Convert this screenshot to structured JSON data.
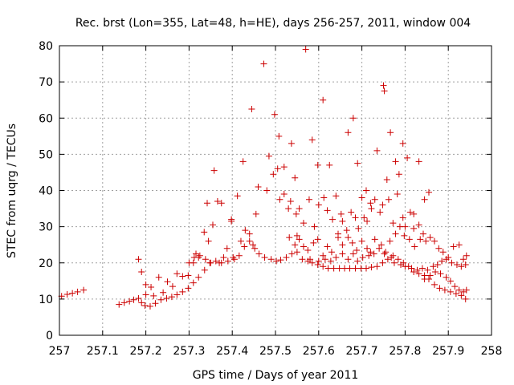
{
  "chart_data": {
    "type": "scatter",
    "title": "Rec. brst (Lon=355, Lat=48, h=HE), days 256-257, 2011, window 004",
    "xlabel": "GPS time / Days of year 2011",
    "ylabel": "STEC from uqrg / TECUs",
    "xlim": [
      257,
      258
    ],
    "ylim": [
      0,
      80
    ],
    "xticks": [
      "257",
      "257.1",
      "257.2",
      "257.3",
      "257.4",
      "257.5",
      "257.6",
      "257.7",
      "257.8",
      "257.9",
      "258"
    ],
    "yticks": [
      "0",
      "10",
      "20",
      "30",
      "40",
      "50",
      "60",
      "70",
      "80"
    ],
    "grid": true,
    "marker": "+",
    "color": "#cc0000",
    "points": [
      [
        257.005,
        10.8
      ],
      [
        257.018,
        11.3
      ],
      [
        257.03,
        11.6
      ],
      [
        257.042,
        12.0
      ],
      [
        257.056,
        12.5
      ],
      [
        257.138,
        8.5
      ],
      [
        257.15,
        9.0
      ],
      [
        257.162,
        9.4
      ],
      [
        257.172,
        9.8
      ],
      [
        257.183,
        10.2
      ],
      [
        257.19,
        9.0
      ],
      [
        257.198,
        8.2
      ],
      [
        257.21,
        8.0
      ],
      [
        257.222,
        8.8
      ],
      [
        257.235,
        9.8
      ],
      [
        257.248,
        10.2
      ],
      [
        257.26,
        10.6
      ],
      [
        257.272,
        11.2
      ],
      [
        257.285,
        12.0
      ],
      [
        257.298,
        13.0
      ],
      [
        257.31,
        14.5
      ],
      [
        257.322,
        16.0
      ],
      [
        257.336,
        18.0
      ],
      [
        257.348,
        20.0
      ],
      [
        257.183,
        21.0
      ],
      [
        257.19,
        17.5
      ],
      [
        257.2,
        14.0
      ],
      [
        257.212,
        13.3
      ],
      [
        257.2,
        11.2
      ],
      [
        257.218,
        10.9
      ],
      [
        257.23,
        16.0
      ],
      [
        257.24,
        11.8
      ],
      [
        257.25,
        14.8
      ],
      [
        257.262,
        13.5
      ],
      [
        257.272,
        17.0
      ],
      [
        257.285,
        16.3
      ],
      [
        257.298,
        16.5
      ],
      [
        257.31,
        20.0
      ],
      [
        257.316,
        22.5
      ],
      [
        257.322,
        21.5
      ],
      [
        257.335,
        28.5
      ],
      [
        257.345,
        26.0
      ],
      [
        257.355,
        30.5
      ],
      [
        257.366,
        37.0
      ],
      [
        257.37,
        20.0
      ],
      [
        257.38,
        21.5
      ],
      [
        257.388,
        24.0
      ],
      [
        257.398,
        31.5
      ],
      [
        257.405,
        21.0
      ],
      [
        257.412,
        38.5
      ],
      [
        257.42,
        26.0
      ],
      [
        257.43,
        29.0
      ],
      [
        257.44,
        28.0
      ],
      [
        257.448,
        25.0
      ],
      [
        257.455,
        33.5
      ],
      [
        257.342,
        36.5
      ],
      [
        257.358,
        45.5
      ],
      [
        257.375,
        36.5
      ],
      [
        257.398,
        32.0
      ],
      [
        257.425,
        48.0
      ],
      [
        257.445,
        62.5
      ],
      [
        257.46,
        41.0
      ],
      [
        257.473,
        75.0
      ],
      [
        257.485,
        49.5
      ],
      [
        257.498,
        61.0
      ],
      [
        257.508,
        55.0
      ],
      [
        257.52,
        46.5
      ],
      [
        257.537,
        53.0
      ],
      [
        257.545,
        43.5
      ],
      [
        257.57,
        79.0
      ],
      [
        257.585,
        54.0
      ],
      [
        257.598,
        47.0
      ],
      [
        257.61,
        65.0
      ],
      [
        257.625,
        47.0
      ],
      [
        257.64,
        38.5
      ],
      [
        257.652,
        33.5
      ],
      [
        257.668,
        56.0
      ],
      [
        257.68,
        60.0
      ],
      [
        257.69,
        47.5
      ],
      [
        257.7,
        38.0
      ],
      [
        257.71,
        40.0
      ],
      [
        257.72,
        36.5
      ],
      [
        257.735,
        51.0
      ],
      [
        257.75,
        69.0
      ],
      [
        257.752,
        67.5
      ],
      [
        257.758,
        43.0
      ],
      [
        257.766,
        56.0
      ],
      [
        257.778,
        48.0
      ],
      [
        257.786,
        44.5
      ],
      [
        257.795,
        53.0
      ],
      [
        257.805,
        49.0
      ],
      [
        257.82,
        33.5
      ],
      [
        257.832,
        48.0
      ],
      [
        257.845,
        37.5
      ],
      [
        257.855,
        39.5
      ],
      [
        257.3,
        20.0
      ],
      [
        257.312,
        21.5
      ],
      [
        257.325,
        22.0
      ],
      [
        257.338,
        21.0
      ],
      [
        257.35,
        20.0
      ],
      [
        257.362,
        20.5
      ],
      [
        257.375,
        20.0
      ],
      [
        257.39,
        20.5
      ],
      [
        257.402,
        21.5
      ],
      [
        257.416,
        22.0
      ],
      [
        257.428,
        24.5
      ],
      [
        257.44,
        26.0
      ],
      [
        257.452,
        24.0
      ],
      [
        257.462,
        22.5
      ],
      [
        257.475,
        21.5
      ],
      [
        257.49,
        21.0
      ],
      [
        257.502,
        20.5
      ],
      [
        257.512,
        20.8
      ],
      [
        257.525,
        21.5
      ],
      [
        257.538,
        22.5
      ],
      [
        257.55,
        23.0
      ],
      [
        257.562,
        21.0
      ],
      [
        257.575,
        20.5
      ],
      [
        257.585,
        20.0
      ],
      [
        257.598,
        19.5
      ],
      [
        257.61,
        19.0
      ],
      [
        257.622,
        18.5
      ],
      [
        257.635,
        18.5
      ],
      [
        257.648,
        18.5
      ],
      [
        257.66,
        18.5
      ],
      [
        257.672,
        18.5
      ],
      [
        257.685,
        18.5
      ],
      [
        257.698,
        18.5
      ],
      [
        257.71,
        18.5
      ],
      [
        257.722,
        18.8
      ],
      [
        257.735,
        19.0
      ],
      [
        257.748,
        20.0
      ],
      [
        257.76,
        21.0
      ],
      [
        257.772,
        22.0
      ],
      [
        257.784,
        21.0
      ],
      [
        257.796,
        20.0
      ],
      [
        257.808,
        19.0
      ],
      [
        257.82,
        17.5
      ],
      [
        257.832,
        17.0
      ],
      [
        257.845,
        16.5
      ],
      [
        257.855,
        15.5
      ],
      [
        257.868,
        14.0
      ],
      [
        257.88,
        13.0
      ],
      [
        257.892,
        12.5
      ],
      [
        257.905,
        12.0
      ],
      [
        257.918,
        11.5
      ],
      [
        257.93,
        11.0
      ],
      [
        257.94,
        10.0
      ],
      [
        257.48,
        40.0
      ],
      [
        257.495,
        44.5
      ],
      [
        257.505,
        46.0
      ],
      [
        257.51,
        37.5
      ],
      [
        257.52,
        39.0
      ],
      [
        257.53,
        35.0
      ],
      [
        257.535,
        37.0
      ],
      [
        257.548,
        33.5
      ],
      [
        257.555,
        35.0
      ],
      [
        257.565,
        31.0
      ],
      [
        257.578,
        37.5
      ],
      [
        257.59,
        30.0
      ],
      [
        257.6,
        36.0
      ],
      [
        257.612,
        38.0
      ],
      [
        257.62,
        34.5
      ],
      [
        257.632,
        32.0
      ],
      [
        257.645,
        28.0
      ],
      [
        257.655,
        31.5
      ],
      [
        257.665,
        29.0
      ],
      [
        257.675,
        34.0
      ],
      [
        257.685,
        32.5
      ],
      [
        257.692,
        29.5
      ],
      [
        257.705,
        32.5
      ],
      [
        257.712,
        31.5
      ],
      [
        257.722,
        35.0
      ],
      [
        257.73,
        37.5
      ],
      [
        257.742,
        34.0
      ],
      [
        257.748,
        36.0
      ],
      [
        257.762,
        37.5
      ],
      [
        257.772,
        31.0
      ],
      [
        257.782,
        39.0
      ],
      [
        257.795,
        32.5
      ],
      [
        257.8,
        30.0
      ],
      [
        257.812,
        34.0
      ],
      [
        257.82,
        29.5
      ],
      [
        257.832,
        30.5
      ],
      [
        257.842,
        28.0
      ],
      [
        257.532,
        27.0
      ],
      [
        257.545,
        25.0
      ],
      [
        257.555,
        26.5
      ],
      [
        257.565,
        24.5
      ],
      [
        257.575,
        23.5
      ],
      [
        257.588,
        25.5
      ],
      [
        257.598,
        26.5
      ],
      [
        257.61,
        22.0
      ],
      [
        257.62,
        24.5
      ],
      [
        257.63,
        23.0
      ],
      [
        257.645,
        27.0
      ],
      [
        257.655,
        25.0
      ],
      [
        257.668,
        27.0
      ],
      [
        257.678,
        25.5
      ],
      [
        257.688,
        23.5
      ],
      [
        257.7,
        26.0
      ],
      [
        257.712,
        24.0
      ],
      [
        257.72,
        23.0
      ],
      [
        257.73,
        26.5
      ],
      [
        257.745,
        25.0
      ],
      [
        257.755,
        23.0
      ],
      [
        257.765,
        26.0
      ],
      [
        257.778,
        28.0
      ],
      [
        257.788,
        30.0
      ],
      [
        257.798,
        27.5
      ],
      [
        257.81,
        26.5
      ],
      [
        257.822,
        24.5
      ],
      [
        257.835,
        26.5
      ],
      [
        257.848,
        26.0
      ],
      [
        257.858,
        27.0
      ],
      [
        257.868,
        26.0
      ],
      [
        257.878,
        24.0
      ],
      [
        257.888,
        23.0
      ],
      [
        257.9,
        21.5
      ],
      [
        257.912,
        24.5
      ],
      [
        257.925,
        25.0
      ],
      [
        257.935,
        21.0
      ],
      [
        257.942,
        22.0
      ],
      [
        257.55,
        27.5
      ],
      [
        257.58,
        21.0
      ],
      [
        257.6,
        20.5
      ],
      [
        257.615,
        21.0
      ],
      [
        257.628,
        20.5
      ],
      [
        257.64,
        21.5
      ],
      [
        257.655,
        22.5
      ],
      [
        257.668,
        21.0
      ],
      [
        257.68,
        22.5
      ],
      [
        257.69,
        20.5
      ],
      [
        257.702,
        21.5
      ],
      [
        257.716,
        22.0
      ],
      [
        257.728,
        22.5
      ],
      [
        257.74,
        24.0
      ],
      [
        257.752,
        22.5
      ],
      [
        257.768,
        21.5
      ],
      [
        257.775,
        20.0
      ],
      [
        257.79,
        19.5
      ],
      [
        257.8,
        19.0
      ],
      [
        257.815,
        18.5
      ],
      [
        257.828,
        18.0
      ],
      [
        257.84,
        18.5
      ],
      [
        257.852,
        18.0
      ],
      [
        257.865,
        19.0
      ],
      [
        257.875,
        19.5
      ],
      [
        257.885,
        20.5
      ],
      [
        257.895,
        21.0
      ],
      [
        257.908,
        20.0
      ],
      [
        257.92,
        19.5
      ],
      [
        257.93,
        19.0
      ],
      [
        257.94,
        19.5
      ],
      [
        257.845,
        15.5
      ],
      [
        257.858,
        16.5
      ],
      [
        257.87,
        17.5
      ],
      [
        257.882,
        17.0
      ],
      [
        257.895,
        16.0
      ],
      [
        257.905,
        15.0
      ],
      [
        257.915,
        13.5
      ],
      [
        257.925,
        12.5
      ],
      [
        257.935,
        12.0
      ],
      [
        257.942,
        12.5
      ]
    ]
  }
}
